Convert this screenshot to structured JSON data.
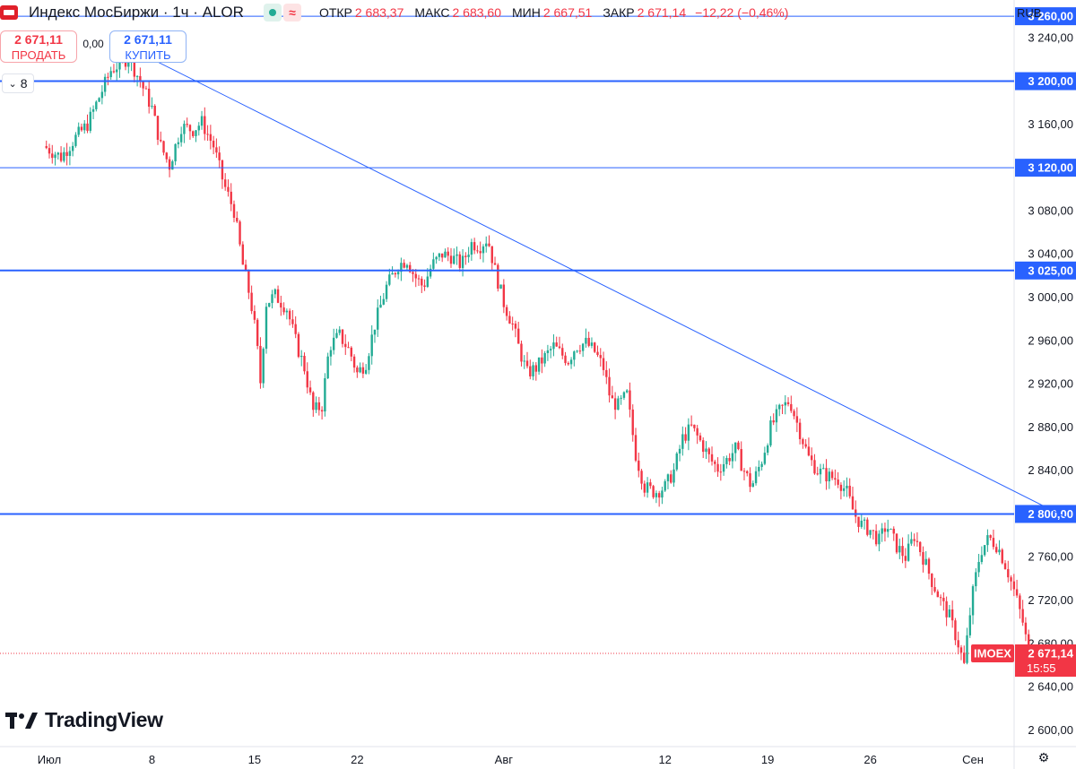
{
  "header": {
    "symbol": "Индекс МосБиржи · 1ч · ALOR",
    "status_badge_icon": "green-dot-icon",
    "wave_badge_icon": "approx-wave-icon",
    "ohlc": [
      {
        "label": "ОТКР",
        "value": "2 683,37"
      },
      {
        "label": "МАКС",
        "value": "2 683,60"
      },
      {
        "label": "МИН",
        "value": "2 667,51"
      },
      {
        "label": "ЗАКР",
        "value": "2 671,14"
      }
    ],
    "change": "−12,22 (−0,46%)",
    "currency": "RUB"
  },
  "trade": {
    "sell_price": "2 671,11",
    "sell_label": "ПРОДАТЬ",
    "spread": "0,00",
    "buy_price": "2 671,11",
    "buy_label": "КУПИТЬ"
  },
  "interval_collapse": {
    "icon": "chevron-down-icon",
    "count": "8"
  },
  "branding": {
    "logo_text": "TradingView"
  },
  "colors": {
    "up": "#22ab94",
    "down": "#f23645",
    "line": "#2962ff",
    "bg": "#ffffff"
  },
  "chart_data": {
    "type": "candlestick",
    "ylim": [
      2585,
      3275
    ],
    "y_ticks": [
      2600,
      2640,
      2680,
      2720,
      2760,
      2800,
      2840,
      2880,
      2920,
      2960,
      3000,
      3040,
      3080,
      3120,
      3160,
      3200,
      3240
    ],
    "y_tick_labels": [
      "2 600,00",
      "2 640,00",
      "2 680,00",
      "2 720,00",
      "2 760,00",
      "2 800,00",
      "2 840,00",
      "2 880,00",
      "2 920,00",
      "2 960,00",
      "3 000,00",
      "3 040,00",
      "3 080,00",
      "3 120,00",
      "3 160,00",
      "3 200,00",
      "3 240,00"
    ],
    "x_ticks": [
      "Июл",
      "8",
      "15",
      "22",
      "Авг",
      "12",
      "19",
      "26",
      "Сен"
    ],
    "x_range_days": [
      0,
      62
    ],
    "x_tick_days": [
      0,
      7,
      14,
      21,
      31,
      42,
      49,
      56,
      63
    ],
    "horizontal_levels": [
      {
        "value": 3260,
        "label": "3 260,00",
        "weight": "thin"
      },
      {
        "value": 3200,
        "label": "3 200,00",
        "weight": "thick"
      },
      {
        "value": 3120,
        "label": "3 120,00",
        "weight": "thin"
      },
      {
        "value": 3025,
        "label": "3 025,00",
        "weight": "thick"
      },
      {
        "value": 2800,
        "label": "2 800,00",
        "weight": "thick"
      }
    ],
    "trendline": {
      "from": {
        "day": 5.3,
        "value": 3232
      },
      "to": {
        "day": 69.5,
        "value": 2796
      }
    },
    "last_price": {
      "value": 2671.14,
      "label": "2 671,14",
      "ticker": "IMOEX",
      "timer": "15:55"
    },
    "price_path": [
      [
        -0.2,
        3140
      ],
      [
        1,
        3130
      ],
      [
        2,
        3148
      ],
      [
        2.8,
        3160
      ],
      [
        3.5,
        3182
      ],
      [
        4.4,
        3210
      ],
      [
        5.6,
        3222
      ],
      [
        6.4,
        3200
      ],
      [
        7.2,
        3175
      ],
      [
        7.8,
        3140
      ],
      [
        8.4,
        3122
      ],
      [
        9.2,
        3158
      ],
      [
        10,
        3155
      ],
      [
        10.6,
        3162
      ],
      [
        11.4,
        3140
      ],
      [
        12.1,
        3105
      ],
      [
        12.8,
        3080
      ],
      [
        13.4,
        3030
      ],
      [
        13.9,
        3000
      ],
      [
        14.3,
        2965
      ],
      [
        14.6,
        2922
      ],
      [
        15,
        2995
      ],
      [
        15.6,
        3002
      ],
      [
        16.4,
        2990
      ],
      [
        17.1,
        2955
      ],
      [
        17.6,
        2935
      ],
      [
        18.2,
        2895
      ],
      [
        18.8,
        2900
      ],
      [
        19.3,
        2955
      ],
      [
        20,
        2965
      ],
      [
        20.7,
        2950
      ],
      [
        21.2,
        2930
      ],
      [
        21.8,
        2940
      ],
      [
        22.4,
        2975
      ],
      [
        23.2,
        3010
      ],
      [
        24,
        3030
      ],
      [
        24.6,
        3035
      ],
      [
        25.1,
        3020
      ],
      [
        25.7,
        3010
      ],
      [
        26.3,
        3030
      ],
      [
        27,
        3040
      ],
      [
        27.6,
        3038
      ],
      [
        28.3,
        3030
      ],
      [
        29,
        3050
      ],
      [
        29.6,
        3048
      ],
      [
        30.1,
        3055
      ],
      [
        30.6,
        3025
      ],
      [
        31.2,
        2995
      ],
      [
        31.8,
        2975
      ],
      [
        32.3,
        2950
      ],
      [
        32.8,
        2930
      ],
      [
        33.4,
        2935
      ],
      [
        34,
        2945
      ],
      [
        34.6,
        2955
      ],
      [
        35.1,
        2948
      ],
      [
        35.6,
        2942
      ],
      [
        36.1,
        2955
      ],
      [
        36.8,
        2958
      ],
      [
        37.4,
        2950
      ],
      [
        38,
        2935
      ],
      [
        38.5,
        2905
      ],
      [
        39,
        2900
      ],
      [
        39.6,
        2910
      ],
      [
        40.2,
        2855
      ],
      [
        40.8,
        2825
      ],
      [
        41.5,
        2820
      ],
      [
        42.2,
        2825
      ],
      [
        42.8,
        2840
      ],
      [
        43.4,
        2870
      ],
      [
        44,
        2880
      ],
      [
        44.7,
        2865
      ],
      [
        45.3,
        2850
      ],
      [
        45.8,
        2842
      ],
      [
        46.4,
        2850
      ],
      [
        47,
        2860
      ],
      [
        47.6,
        2840
      ],
      [
        48.1,
        2825
      ],
      [
        48.8,
        2850
      ],
      [
        49.4,
        2880
      ],
      [
        50,
        2895
      ],
      [
        50.7,
        2905
      ],
      [
        51.3,
        2880
      ],
      [
        52,
        2852
      ],
      [
        52.6,
        2840
      ],
      [
        53.3,
        2835
      ],
      [
        54,
        2832
      ],
      [
        54.6,
        2820
      ],
      [
        55.1,
        2800
      ],
      [
        55.6,
        2790
      ],
      [
        56.2,
        2785
      ],
      [
        56.8,
        2775
      ],
      [
        57.3,
        2790
      ],
      [
        58,
        2770
      ],
      [
        58.6,
        2760
      ],
      [
        59.2,
        2780
      ],
      [
        59.8,
        2760
      ],
      [
        60.4,
        2738
      ],
      [
        61,
        2720
      ],
      [
        61.6,
        2705
      ],
      [
        62.2,
        2680
      ],
      [
        62.6,
        2660
      ],
      [
        63.1,
        2720
      ],
      [
        63.7,
        2765
      ],
      [
        64.3,
        2778
      ],
      [
        64.9,
        2770
      ],
      [
        65.5,
        2750
      ],
      [
        66.1,
        2725
      ],
      [
        66.6,
        2700
      ],
      [
        67,
        2672
      ]
    ]
  }
}
